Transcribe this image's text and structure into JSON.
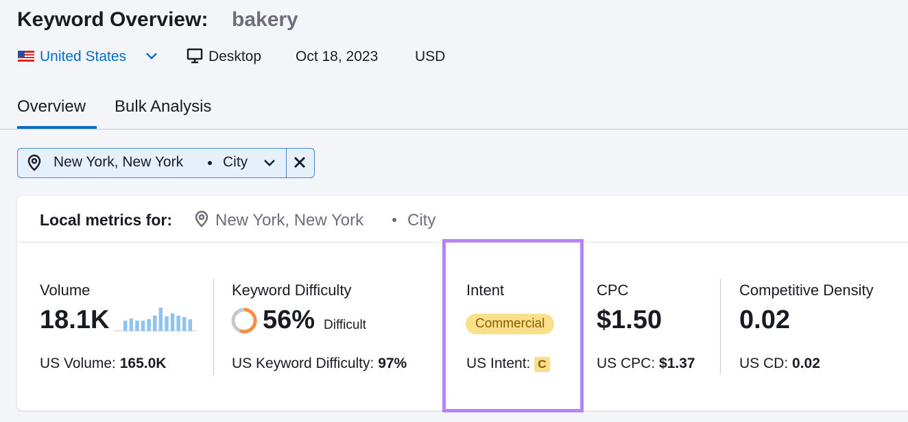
{
  "header": {
    "title": "Keyword Overview:",
    "keyword": "bakery",
    "country": "United States",
    "device": "Desktop",
    "date": "Oct 18, 2023",
    "currency": "USD"
  },
  "tabs": [
    "Overview",
    "Bulk Analysis"
  ],
  "filter": {
    "location": "New York, New York",
    "type": "City"
  },
  "card": {
    "heading": "Local metrics for:",
    "location": "New York, New York",
    "type": "City",
    "metrics": [
      {
        "label": "Volume",
        "value": "18.1K",
        "sub_label": "US Volume:",
        "sub_value": "165.0K",
        "sparkline": [
          14,
          17,
          14,
          14,
          16,
          21,
          32,
          20,
          24,
          21,
          19,
          16
        ]
      },
      {
        "label": "Keyword Difficulty",
        "value": "56%",
        "note": "Difficult",
        "sub_label": "US Keyword Difficulty:",
        "sub_value": "97%"
      },
      {
        "label": "Intent",
        "value": "Commercial",
        "sub_label": "US Intent:",
        "sub_value": "C"
      },
      {
        "label": "CPC",
        "value": "$1.50",
        "sub_label": "US CPC:",
        "sub_value": "$1.37"
      },
      {
        "label": "Competitive Density",
        "value": "0.02",
        "sub_label": "US CD:",
        "sub_value": "0.02"
      }
    ]
  }
}
